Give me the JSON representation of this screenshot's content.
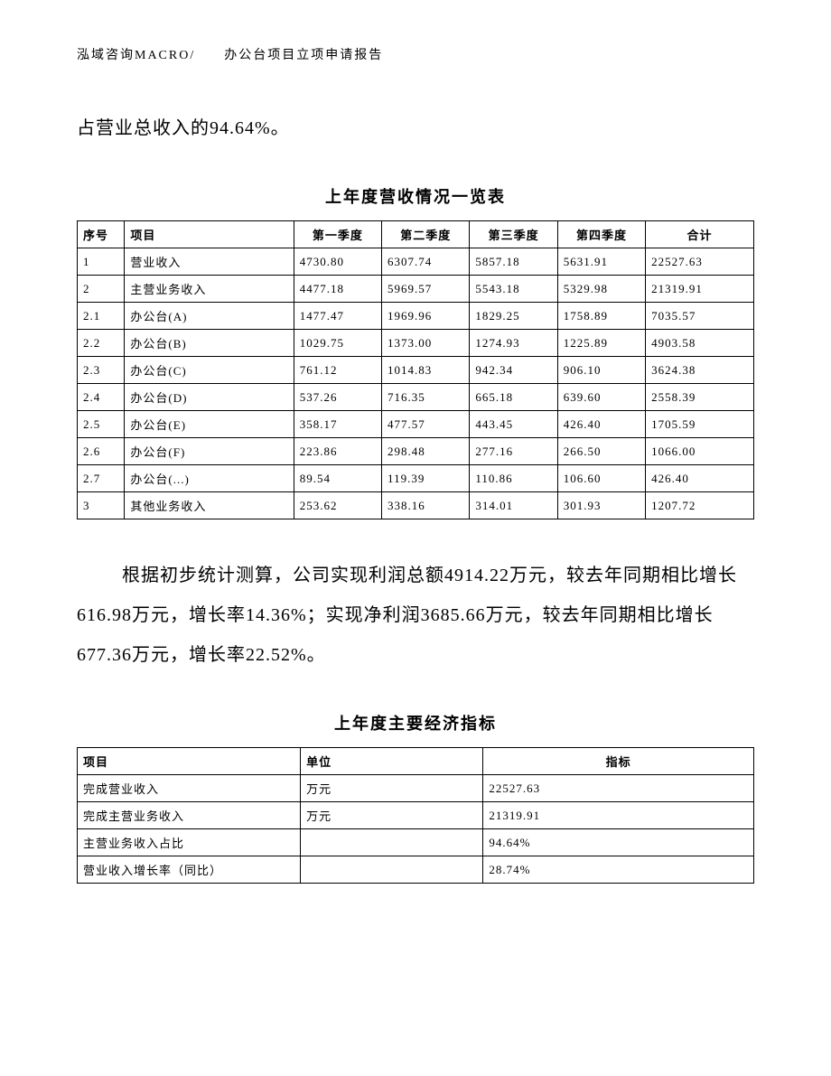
{
  "header": "泓域咨询MACRO/　　办公台项目立项申请报告",
  "para1": "占营业总收入的94.64%。",
  "table1": {
    "title": "上年度营收情况一览表",
    "columns": [
      "序号",
      "项目",
      "第一季度",
      "第二季度",
      "第三季度",
      "第四季度",
      "合计"
    ],
    "rows": [
      [
        "1",
        "营业收入",
        "4730.80",
        "6307.74",
        "5857.18",
        "5631.91",
        "22527.63"
      ],
      [
        "2",
        "主营业务收入",
        "4477.18",
        "5969.57",
        "5543.18",
        "5329.98",
        "21319.91"
      ],
      [
        "2.1",
        "办公台(A)",
        "1477.47",
        "1969.96",
        "1829.25",
        "1758.89",
        "7035.57"
      ],
      [
        "2.2",
        "办公台(B)",
        "1029.75",
        "1373.00",
        "1274.93",
        "1225.89",
        "4903.58"
      ],
      [
        "2.3",
        "办公台(C)",
        "761.12",
        "1014.83",
        "942.34",
        "906.10",
        "3624.38"
      ],
      [
        "2.4",
        "办公台(D)",
        "537.26",
        "716.35",
        "665.18",
        "639.60",
        "2558.39"
      ],
      [
        "2.5",
        "办公台(E)",
        "358.17",
        "477.57",
        "443.45",
        "426.40",
        "1705.59"
      ],
      [
        "2.6",
        "办公台(F)",
        "223.86",
        "298.48",
        "277.16",
        "266.50",
        "1066.00"
      ],
      [
        "2.7",
        "办公台(...)",
        "89.54",
        "119.39",
        "110.86",
        "106.60",
        "426.40"
      ],
      [
        "3",
        "其他业务收入",
        "253.62",
        "338.16",
        "314.01",
        "301.93",
        "1207.72"
      ]
    ]
  },
  "para2": "根据初步统计测算，公司实现利润总额4914.22万元，较去年同期相比增长616.98万元，增长率14.36%；实现净利润3685.66万元，较去年同期相比增长677.36万元，增长率22.52%。",
  "table2": {
    "title": "上年度主要经济指标",
    "columns": [
      "项目",
      "单位",
      "指标"
    ],
    "rows": [
      [
        "完成营业收入",
        "万元",
        "22527.63"
      ],
      [
        "完成主营业务收入",
        "万元",
        "21319.91"
      ],
      [
        "主营业务收入占比",
        "",
        "94.64%"
      ],
      [
        "营业收入增长率（同比）",
        "",
        "28.74%"
      ]
    ]
  }
}
